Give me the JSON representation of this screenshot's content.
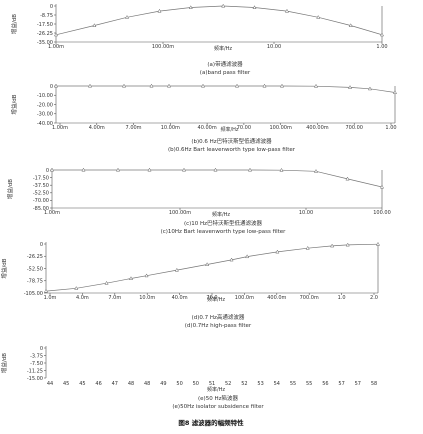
{
  "figure_caption": "图8  滤波器的幅频特性",
  "chart_data": [
    {
      "type": "line",
      "id": "a",
      "ylabel": "增益/dB",
      "xlabel": "频率/Hz",
      "caption_cn": "(a)带通滤波器",
      "caption_en": "(a)band pass filter",
      "y_ticks": [
        "0",
        "-8.75",
        "-17.50",
        "-26.25",
        "-35.00"
      ],
      "x_ticks": [
        "1.00m",
        "100.00m",
        "10.00",
        "1.00"
      ],
      "x_scale": "log",
      "ylim": [
        -35,
        0
      ],
      "x": [
        0.001,
        0.004,
        0.013,
        0.042,
        0.13,
        0.42,
        1.3,
        4.2,
        13,
        42,
        130
      ],
      "y": [
        -28,
        -19,
        -11,
        -5,
        -1.5,
        0,
        -1.5,
        -5,
        -11,
        -19,
        -28
      ]
    },
    {
      "type": "line",
      "id": "b",
      "ylabel": "增益/dB",
      "xlabel": "频率/Hz",
      "caption_cn": "(b)0.6 Hz巴特沃斯型低通滤波器",
      "caption_en": "(b)0.6Hz Bart leavenworth type low-pass filter",
      "y_ticks": [
        "0",
        "-10.00",
        "-20.00",
        "-30.00",
        "-40.00"
      ],
      "x_ticks": [
        "1.00m",
        "4.00m",
        "7.00m",
        "10.00m",
        "40.00m",
        "70.00",
        "100.00m",
        "400.00m",
        "700.00",
        "1.00"
      ],
      "x_scale": "log",
      "ylim": [
        -40,
        0
      ],
      "x": [
        0.001,
        0.002,
        0.004,
        0.007,
        0.01,
        0.02,
        0.04,
        0.07,
        0.1,
        0.2,
        0.4,
        0.6,
        1.0
      ],
      "y": [
        0,
        0,
        0,
        0,
        0,
        0,
        0,
        0,
        0,
        -0.2,
        -1.5,
        -3,
        -7
      ]
    },
    {
      "type": "line",
      "id": "c",
      "ylabel": "增益/dB",
      "xlabel": "频率/Hz",
      "caption_cn": "(c)10 Hz巴特沃斯型低通滤波器",
      "caption_en": "(c)10Hz Bart leavenworth type low-pass filter",
      "y_ticks": [
        "0",
        "-17.50",
        "-37.50",
        "-52.50",
        "-70.00",
        "-85.00"
      ],
      "x_ticks": [
        "1.00m",
        "100.00m",
        "10.00",
        "100.00"
      ],
      "x_scale": "log",
      "ylim": [
        -85,
        0
      ],
      "x": [
        0.001,
        0.003,
        0.01,
        0.03,
        0.1,
        0.3,
        1,
        3,
        10,
        30,
        100
      ],
      "y": [
        0,
        0,
        0,
        0,
        0,
        0,
        0,
        -0.5,
        -3,
        -20,
        -38
      ]
    },
    {
      "type": "line",
      "id": "d",
      "ylabel": "增益/dB",
      "xlabel": "频率/Hz",
      "caption_cn": "(d)0.7 Hz高通滤波器",
      "caption_en": "(d)0.7Hz high-pass filter",
      "y_ticks": [
        "0",
        "-26.25",
        "-52.50",
        "-78.75",
        "-105.00"
      ],
      "x_ticks": [
        "1.0m",
        "4.0m",
        "7.0m",
        "10.0m",
        "40.0m",
        "70.0",
        "100.0m",
        "400.0m",
        "700.0m",
        "1.0",
        "2.0"
      ],
      "x_scale": "log",
      "ylim": [
        -105,
        0
      ],
      "x": [
        0.001,
        0.002,
        0.004,
        0.007,
        0.01,
        0.02,
        0.04,
        0.07,
        0.1,
        0.2,
        0.4,
        0.7,
        1.0,
        2.0
      ],
      "y": [
        -101,
        -95,
        -84,
        -74,
        -68,
        -56,
        -44,
        -34,
        -27,
        -17,
        -9,
        -4,
        -2,
        -0.5
      ]
    },
    {
      "type": "line",
      "id": "e",
      "ylabel": "增益/dB",
      "xlabel": "频率/Hz",
      "caption_cn": "(e)50 Hz陷波器",
      "caption_en": "(e)50Hz isolator subsidence filter",
      "y_ticks": [
        "0",
        "-3.75",
        "-7.50",
        "-11.25",
        "-15.00"
      ],
      "x_ticks": [
        "44",
        "45",
        "45",
        "46",
        "47",
        "48",
        "48",
        "49",
        "50",
        "50",
        "51",
        "52",
        "52",
        "53",
        "54",
        "55",
        "55",
        "56",
        "57",
        "57",
        "58"
      ],
      "ylim": [
        -15,
        0
      ],
      "x": [],
      "y": []
    }
  ]
}
